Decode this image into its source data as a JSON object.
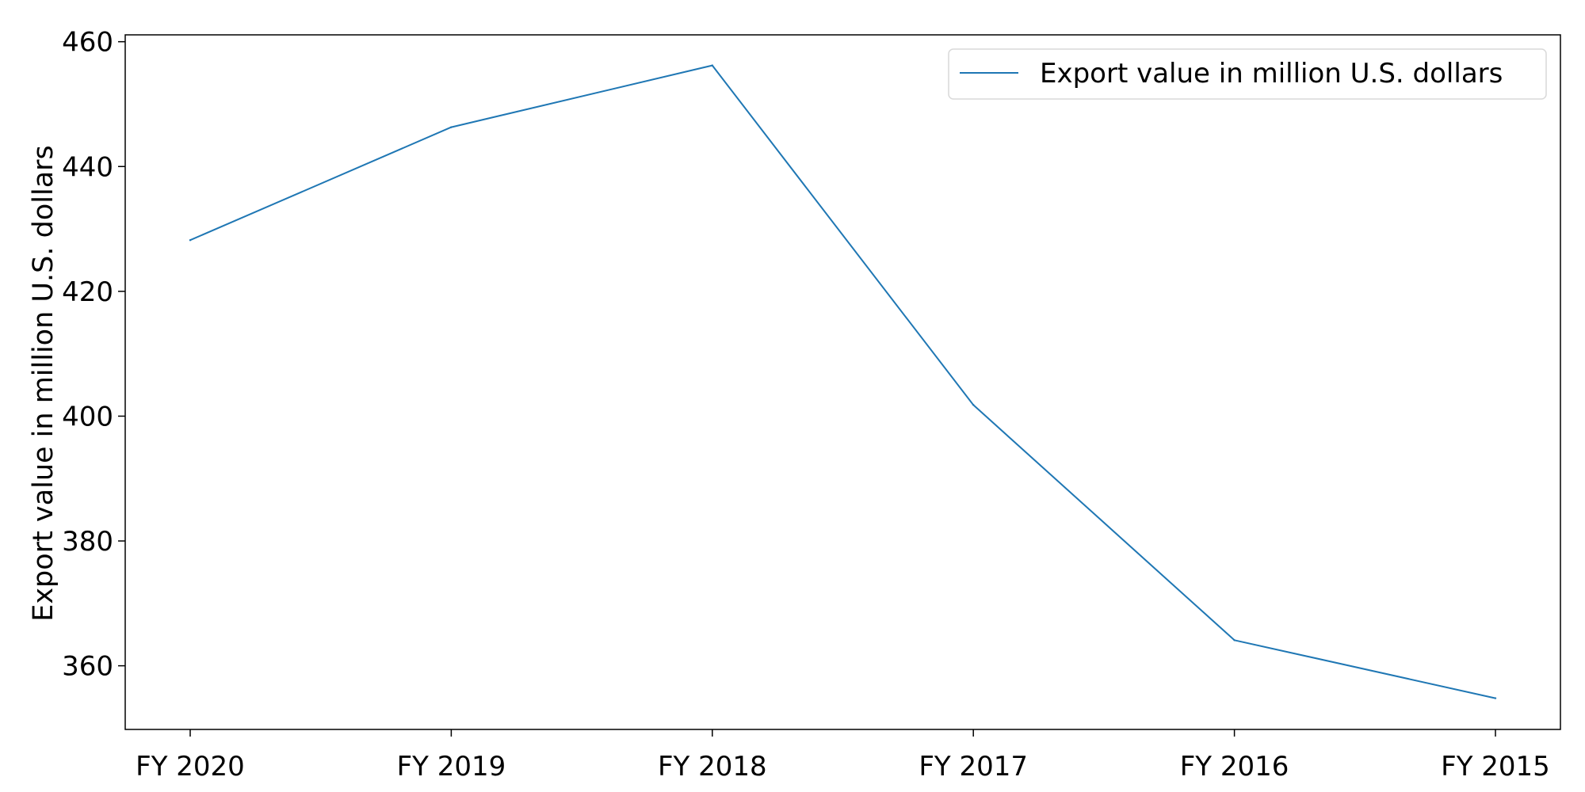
{
  "chart_data": {
    "type": "line",
    "title": "",
    "xlabel": "",
    "ylabel": "Export value in million U.S. dollars",
    "categories": [
      "FY 2020",
      "FY 2019",
      "FY 2018",
      "FY 2017",
      "FY 2016",
      "FY 2015"
    ],
    "series": [
      {
        "name": "Export value in million U.S. dollars",
        "values": [
          428.2,
          446.3,
          456.2,
          401.8,
          364.1,
          354.8
        ],
        "color": "#1f77b4"
      }
    ],
    "ylim": [
      349.8,
      461.1
    ],
    "yticks": [
      360,
      380,
      400,
      420,
      440,
      460
    ],
    "grid": false,
    "legend": "top-right"
  }
}
